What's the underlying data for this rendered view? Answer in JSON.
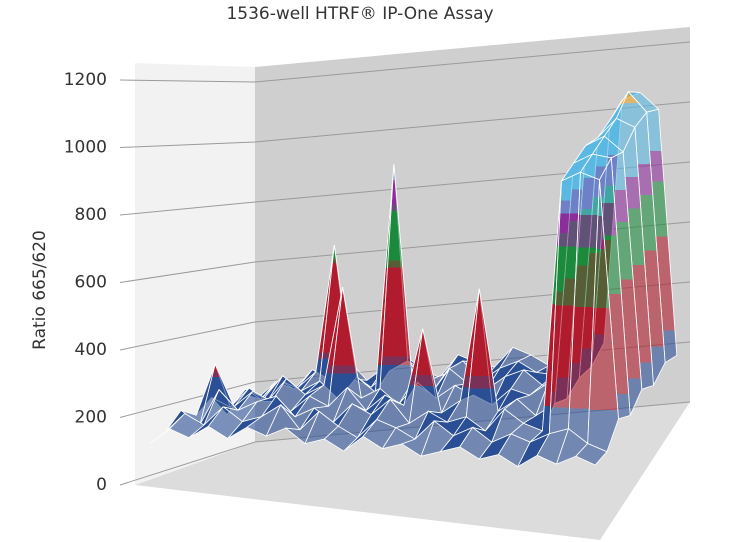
{
  "chart_data": {
    "type": "surface",
    "title": "1536-well HTRF® IP-One Assay",
    "y_label": "Ratio 665/620",
    "ylim": [
      0,
      1250
    ],
    "yticks": [
      0,
      200,
      400,
      600,
      800,
      1000,
      1200
    ],
    "grid": true,
    "bands": [
      {
        "from": 0,
        "color": "#2b4f94"
      },
      {
        "from": 290,
        "color": "#b01c2e"
      },
      {
        "from": 600,
        "color": "#1c8a3c"
      },
      {
        "from": 780,
        "color": "#8c2d9c"
      },
      {
        "from": 880,
        "color": "#5bb8e2"
      },
      {
        "from": 1080,
        "color": "#f0a21e"
      }
    ],
    "values": [
      [
        150,
        200,
        170,
        230,
        190,
        250,
        180,
        220,
        260,
        200,
        170,
        240,
        210,
        190,
        250,
        220,
        180,
        230,
        200,
        240,
        1040,
        1060,
        1000,
        180
      ],
      [
        180,
        160,
        220,
        190,
        240,
        650,
        210,
        180,
        230,
        260,
        190,
        210,
        250,
        180,
        220,
        240,
        200,
        190,
        230,
        210,
        1010,
        1100,
        1030,
        210
      ],
      [
        130,
        210,
        180,
        250,
        200,
        230,
        170,
        240,
        190,
        920,
        220,
        180,
        260,
        210,
        190,
        230,
        250,
        200,
        180,
        220,
        990,
        1050,
        1020,
        190
      ],
      [
        200,
        170,
        230,
        190,
        260,
        210,
        240,
        550,
        200,
        230,
        180,
        250,
        200,
        240,
        210,
        180,
        230,
        210,
        250,
        200,
        1000,
        1030,
        980,
        230
      ],
      [
        160,
        320,
        190,
        240,
        210,
        180,
        230,
        200,
        260,
        190,
        240,
        210,
        450,
        190,
        230,
        580,
        200,
        240,
        190,
        230,
        980,
        1010,
        1000,
        200
      ],
      [
        190,
        150,
        260,
        200,
        230,
        250,
        190,
        220,
        180,
        240,
        210,
        260,
        190,
        230,
        200,
        220,
        180,
        250,
        210,
        190,
        960,
        990,
        970,
        240
      ],
      [
        140,
        200,
        170,
        230,
        190,
        210,
        250,
        180,
        240,
        200,
        170,
        230,
        210,
        180,
        240,
        200,
        230,
        190,
        220,
        200,
        230,
        250,
        210,
        190
      ],
      [
        120,
        170,
        150,
        190,
        160,
        200,
        180,
        210,
        170,
        190,
        160,
        210,
        180,
        200,
        170,
        190,
        210,
        180,
        200,
        170,
        210,
        190,
        220,
        200
      ]
    ]
  }
}
